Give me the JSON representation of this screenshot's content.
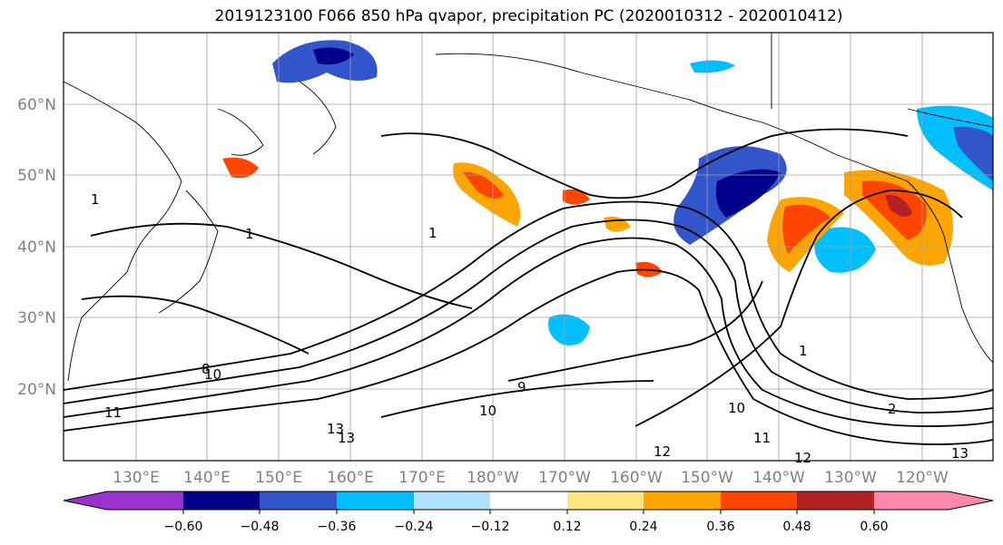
{
  "title": "2019123100 F066 850 hPa qvapor, precipitation PC (2020010312 - 2020010412)",
  "map": {
    "lat_labels": [
      "60°N",
      "50°N",
      "40°N",
      "30°N",
      "20°N"
    ],
    "lon_labels": [
      "130°E",
      "140°E",
      "150°E",
      "160°E",
      "170°E",
      "180°W",
      "170°W",
      "160°W",
      "150°W",
      "140°W",
      "130°W",
      "120°W"
    ],
    "contour_labels": [
      "1",
      "1",
      "1",
      "10",
      "10",
      "11",
      "13",
      "13",
      "10",
      "12",
      "11",
      "12",
      "2",
      "13",
      "1",
      "9",
      "8"
    ]
  },
  "colorbar": {
    "ticks": [
      "−0.60",
      "−0.48",
      "−0.36",
      "−0.24",
      "−0.12",
      "0.12",
      "0.24",
      "0.36",
      "0.48",
      "0.60"
    ],
    "colors": [
      "#9933cc",
      "#00008b",
      "#3355cc",
      "#00bfff",
      "#b0e0ff",
      "#ffffff",
      "#ffe680",
      "#ffa500",
      "#ff4500",
      "#b22222",
      "#ff88aa"
    ]
  }
}
